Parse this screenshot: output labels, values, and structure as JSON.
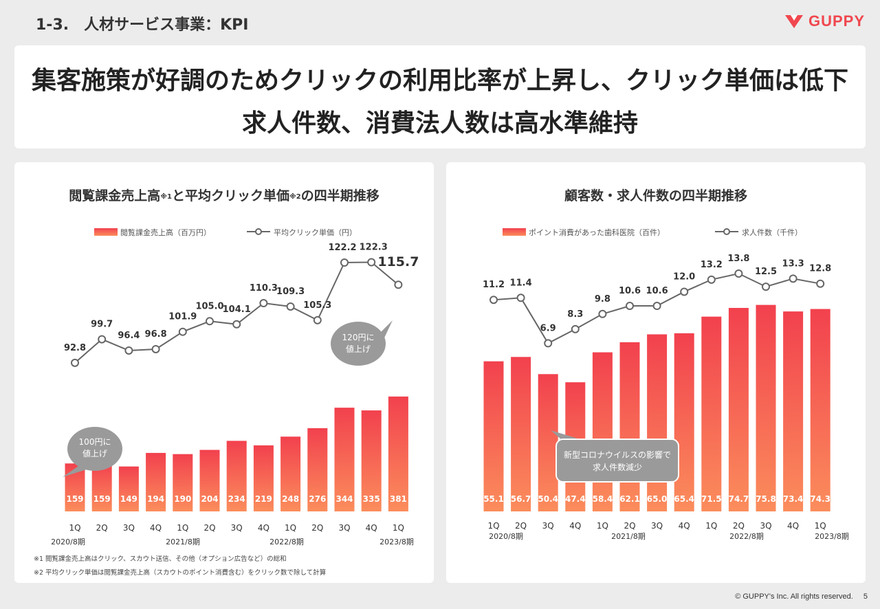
{
  "header": {
    "title": "1-3.　人材サービス事業：KPI"
  },
  "logo": {
    "text": "GUPPY",
    "color": "#f0474e"
  },
  "headline": {
    "line1": "集客施策が好調のためクリックの利用比率が上昇し、クリック単価は低下",
    "line2": "求人件数、消費法人数は高水準維持"
  },
  "left": {
    "title_pre": "閲覧課金売上高",
    "title_sup1": "※1",
    "title_mid": "と平均クリック単価",
    "title_sup2": "※2",
    "title_post": "の四半期推移",
    "legend_bar": "閲覧課金売上高（百万円）",
    "legend_line": "平均クリック単価（円）",
    "bubble1": [
      "100円に",
      "値上げ"
    ],
    "bubble2": [
      "120円に",
      "値上げ"
    ],
    "fiscal_labels": [
      "2020/8期",
      "2021/8期",
      "2022/8期",
      "2023/8期"
    ],
    "footnote1": "※1 閲覧課金売上高はクリック、スカウト送信、その他（オプション広告など）の総和",
    "footnote2": "※2 平均クリック単価は閲覧課金売上高（スカウトのポイント消費含む）をクリック数で除して計算"
  },
  "right": {
    "title": "顧客数・求人件数の四半期推移",
    "legend_bar": "ポイント消費があった歯科医院（百件）",
    "legend_line": "求人件数（千件）",
    "callout": [
      "新型コロナウイルスの影響で",
      "求人件数減少"
    ],
    "fiscal_labels": [
      "2020/8期",
      "2021/8期",
      "2022/8期",
      "2023/8期"
    ]
  },
  "chart_data": [
    {
      "type": "bar",
      "title": "閲覧課金売上高※1と平均クリック単価※2の四半期推移",
      "categories": [
        "1Q",
        "2Q",
        "3Q",
        "4Q",
        "1Q",
        "2Q",
        "3Q",
        "4Q",
        "1Q",
        "2Q",
        "3Q",
        "4Q",
        "1Q"
      ],
      "series": [
        {
          "name": "閲覧課金売上高（百万円）",
          "type": "bar",
          "values": [
            159,
            159,
            149,
            194,
            190,
            204,
            234,
            219,
            248,
            276,
            344,
            335,
            381
          ]
        },
        {
          "name": "平均クリック単価（円）",
          "type": "line",
          "values": [
            92.8,
            99.7,
            96.4,
            96.8,
            101.9,
            105.0,
            104.1,
            110.3,
            109.3,
            105.3,
            122.2,
            122.3,
            115.7
          ]
        }
      ],
      "line_labels": [
        "92.8",
        "99.7",
        "96.4",
        "96.8",
        "101.9",
        "105.0",
        "104.1",
        "110.3",
        "109.3",
        "105.3",
        "122.2",
        "122.3",
        "115.7"
      ],
      "colors": {
        "bar_top": "#f2414e",
        "bar_bottom": "#fb8d5c",
        "line": "#666666"
      }
    },
    {
      "type": "bar",
      "title": "顧客数・求人件数の四半期推移",
      "categories": [
        "1Q",
        "2Q",
        "3Q",
        "4Q",
        "1Q",
        "2Q",
        "3Q",
        "4Q",
        "1Q",
        "2Q",
        "3Q",
        "4Q",
        "1Q"
      ],
      "series": [
        {
          "name": "ポイント消費があった歯科医院（百件）",
          "type": "bar",
          "values": [
            55.1,
            56.7,
            50.4,
            47.4,
            58.4,
            62.1,
            65.0,
            65.4,
            71.5,
            74.7,
            75.8,
            73.4,
            74.3
          ]
        },
        {
          "name": "求人件数（千件）",
          "type": "line",
          "values": [
            11.2,
            11.4,
            6.9,
            8.3,
            9.8,
            10.6,
            10.6,
            12.0,
            13.2,
            13.8,
            12.5,
            13.3,
            12.8
          ]
        }
      ],
      "bar_labels": [
        "55.1",
        "56.7",
        "50.4",
        "47.4",
        "58.4",
        "62.1",
        "65.0",
        "65.4",
        "71.5",
        "74.7",
        "75.8",
        "73.4",
        "74.3"
      ],
      "line_labels": [
        "11.2",
        "11.4",
        "6.9",
        "8.3",
        "9.8",
        "10.6",
        "10.6",
        "12.0",
        "13.2",
        "13.8",
        "12.5",
        "13.3",
        "12.8"
      ],
      "colors": {
        "bar_top": "#f2414e",
        "bar_bottom": "#fb8d5c",
        "line": "#666666"
      }
    }
  ],
  "footer": {
    "copyright": "© GUPPY's Inc. All rights reserved.",
    "page": "5"
  }
}
